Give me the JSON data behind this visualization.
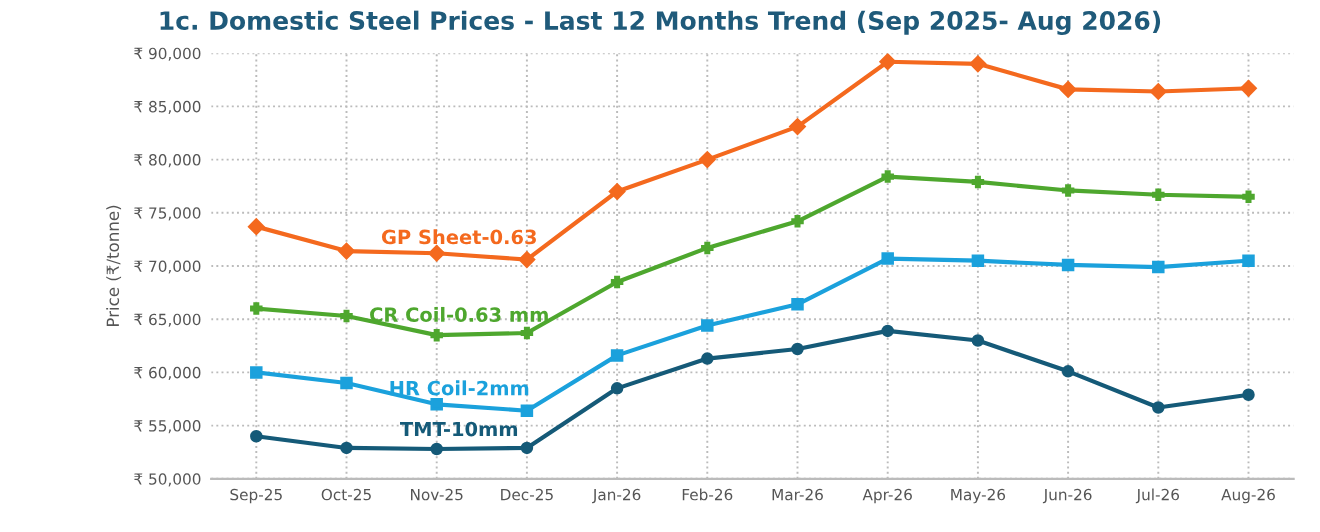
{
  "chart_data": {
    "type": "line",
    "title": "1c. Domestic Steel Prices - Last 12 Months Trend (Sep 2025- Aug 2026)",
    "ylabel": "Price (₹/tonne)",
    "categories": [
      "Sep-25",
      "Oct-25",
      "Nov-25",
      "Dec-25",
      "Jan-26",
      "Feb-26",
      "Mar-26",
      "Apr-26",
      "May-26",
      "Jun-26",
      "Jul-26",
      "Aug-26"
    ],
    "series": [
      {
        "name": "GP Sheet-0.63",
        "color": "#f4691e",
        "marker": "diamond",
        "values": [
          73700,
          71400,
          71200,
          70600,
          77000,
          80000,
          83100,
          89200,
          89000,
          86600,
          86400,
          86700
        ]
      },
      {
        "name": "CR Coil-0.63 mm",
        "color": "#4ea72e",
        "marker": "cross",
        "values": [
          66000,
          65300,
          63500,
          63700,
          68500,
          71700,
          74200,
          78400,
          77900,
          77100,
          76700,
          76500
        ]
      },
      {
        "name": "HR Coil-2mm",
        "color": "#1ba1dc",
        "marker": "square",
        "values": [
          60000,
          59000,
          57000,
          56400,
          61600,
          64400,
          66400,
          70700,
          70500,
          70100,
          69900,
          70500
        ]
      },
      {
        "name": "TMT-10mm",
        "color": "#155a78",
        "marker": "circle",
        "values": [
          54000,
          52900,
          52800,
          52900,
          58500,
          61300,
          62200,
          63900,
          63000,
          60100,
          56700,
          57900
        ]
      }
    ],
    "ylim": [
      50000,
      90000
    ],
    "yticks": [
      {
        "value": 50000,
        "label": "₹ 50,000"
      },
      {
        "value": 55000,
        "label": "₹ 55,000"
      },
      {
        "value": 60000,
        "label": "₹ 60,000"
      },
      {
        "value": 65000,
        "label": "₹ 65,000"
      },
      {
        "value": 70000,
        "label": "₹ 70,000"
      },
      {
        "value": 75000,
        "label": "₹ 75,000"
      },
      {
        "value": 80000,
        "label": "₹ 80,000"
      },
      {
        "value": 85000,
        "label": "₹ 85,000"
      },
      {
        "value": 90000,
        "label": "₹ 90,000"
      }
    ],
    "grid": true,
    "line_style": "solid",
    "legend": false
  }
}
